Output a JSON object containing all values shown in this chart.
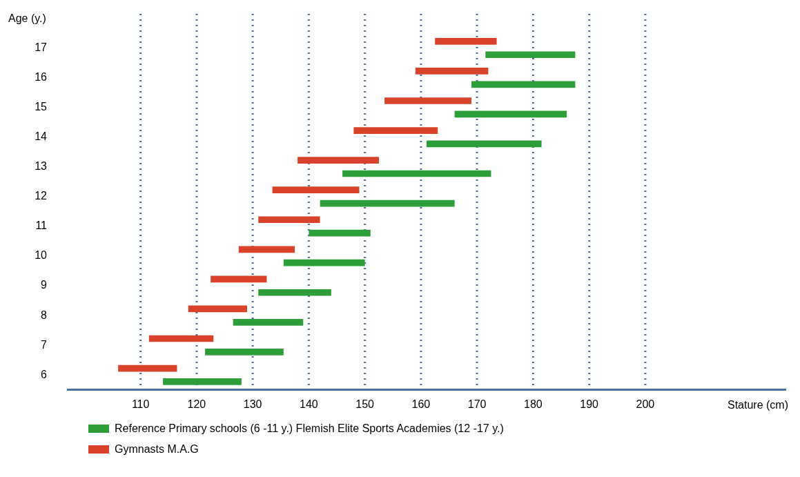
{
  "chart_data": {
    "type": "bar",
    "orientation": "horizontal",
    "xlabel": "Stature (cm)",
    "ylabel": "Age (y.)",
    "categories": [
      "17",
      "16",
      "15",
      "14",
      "13",
      "12",
      "11",
      "10",
      "9",
      "8",
      "7",
      "6"
    ],
    "series": [
      {
        "name": "Gymnasts M.A.G",
        "color": "#d9432b",
        "base": [
          162.5,
          159,
          153.5,
          148,
          138,
          133.5,
          131,
          127.5,
          122.5,
          118.5,
          111.5,
          106
        ],
        "values": [
          11,
          13,
          15.5,
          15,
          14.5,
          15.5,
          11,
          10,
          10,
          10.5,
          11.5,
          10.5
        ]
      },
      {
        "name": "Reference Primary schools (6 -11 y.) Flemish Elite Sports Academies (12 -17 y.)",
        "color": "#2e9e3a",
        "base": [
          171.5,
          169,
          166,
          161,
          146,
          142,
          140,
          135.5,
          131,
          126.5,
          121.5,
          114
        ],
        "values": [
          16,
          18.5,
          20,
          20.5,
          26.5,
          24,
          11,
          14.5,
          13,
          12.5,
          14,
          14
        ]
      }
    ],
    "xlim": [
      97,
      225
    ],
    "xticks": [
      110,
      120,
      130,
      140,
      150,
      160,
      170,
      180,
      190,
      200
    ],
    "grid": "x",
    "legend": "bottom"
  }
}
